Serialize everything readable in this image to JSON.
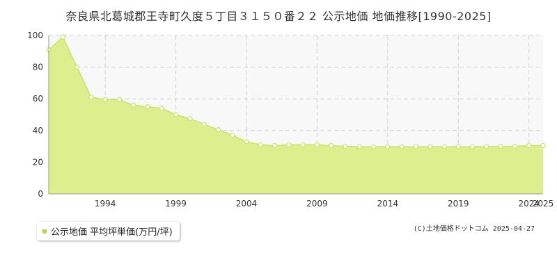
{
  "chart_data": {
    "type": "area",
    "title": "奈良県北葛城郡王寺町久度５丁目３１５０番２２ 公示地価 地価推移[1990-2025]",
    "x": [
      1990,
      1991,
      1992,
      1993,
      1994,
      1995,
      1996,
      1997,
      1998,
      1999,
      2000,
      2001,
      2002,
      2003,
      2004,
      2005,
      2006,
      2007,
      2008,
      2009,
      2010,
      2011,
      2012,
      2013,
      2014,
      2015,
      2016,
      2017,
      2018,
      2019,
      2020,
      2021,
      2022,
      2023,
      2024,
      2025
    ],
    "series": [
      {
        "name": "公示地価 平均坪単価(万円/坪)",
        "values": [
          91,
          99,
          80,
          61,
          59.5,
          59.5,
          56,
          55,
          54,
          50,
          47.5,
          44,
          40.5,
          37,
          33,
          31,
          30.5,
          31,
          31,
          31,
          30.5,
          30,
          29.8,
          29.8,
          29.8,
          29.8,
          29.8,
          29.8,
          29.8,
          29.8,
          29.8,
          29.8,
          30,
          30,
          30.5,
          30.5
        ]
      }
    ],
    "xticks": [
      "1994",
      "1999",
      "2004",
      "2009",
      "2014",
      "2019",
      "2024",
      "2025"
    ],
    "yticks": [
      "0",
      "20",
      "40",
      "60",
      "80",
      "100"
    ],
    "xlim": [
      1990,
      2025
    ],
    "ylim": [
      0,
      100
    ],
    "grid": true,
    "legend_position": "bottom-left"
  },
  "colors": {
    "area_fill": "#dcee8e",
    "line": "#c8e36a",
    "marker_fill": "#ffffff",
    "marker_stroke": "#c8e36a",
    "plot_bg": "#f8f8f8",
    "grid": "#d0d0d0",
    "axis": "#999999",
    "legend_marker": "#b5d944"
  },
  "copyright": "(C)土地価格ドットコム 2025-04-27"
}
